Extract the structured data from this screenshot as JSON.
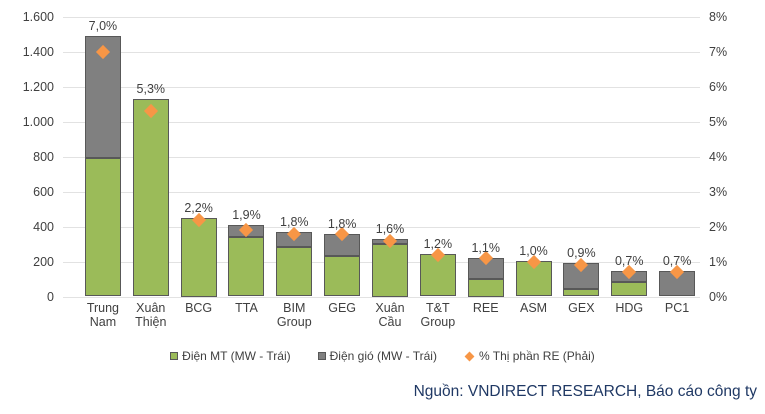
{
  "chart_data": {
    "type": "bar",
    "subtype": "stacked-bars-with-scatter-overlay",
    "categories": [
      "Trung Nam",
      "Xuân Thiện",
      "BCG",
      "TTA",
      "BIM Group",
      "GEG",
      "Xuân Cầu",
      "T&T Group",
      "REE",
      "ASM",
      "GEX",
      "HDG",
      "PC1"
    ],
    "series": [
      {
        "name": "Điện MT (MW - Trái)",
        "type": "bar-stack",
        "axis": "left",
        "color": "#9bbb59",
        "values": [
          790,
          1130,
          450,
          340,
          285,
          230,
          300,
          245,
          100,
          205,
          45,
          85,
          0
        ]
      },
      {
        "name": "Điện gió (MW - Trái)",
        "type": "bar-stack",
        "axis": "left",
        "color": "#808080",
        "values": [
          700,
          0,
          0,
          70,
          85,
          130,
          30,
          0,
          120,
          0,
          145,
          60,
          145
        ]
      },
      {
        "name": "% Thị phần RE (Phải)",
        "type": "scatter-diamond",
        "axis": "right",
        "color": "#f79646",
        "values": [
          7.0,
          5.3,
          2.2,
          1.9,
          1.8,
          1.8,
          1.6,
          1.2,
          1.1,
          1.0,
          0.9,
          0.7,
          0.7
        ]
      }
    ],
    "point_labels": [
      "7,0%",
      "5,3%",
      "2,2%",
      "1,9%",
      "1,8%",
      "1,8%",
      "1,6%",
      "1,2%",
      "1,1%",
      "1,0%",
      "0,9%",
      "0,7%",
      "0,7%"
    ],
    "left_axis": {
      "min": 0,
      "max": 1600,
      "step": 200,
      "ticks": [
        "1.600",
        "1.400",
        "1.200",
        "1.000",
        "800",
        "600",
        "400",
        "200",
        "0"
      ]
    },
    "right_axis": {
      "min": 0,
      "max": 8,
      "step": 1,
      "ticks": [
        "8%",
        "7%",
        "6%",
        "5%",
        "4%",
        "3%",
        "2%",
        "1%",
        "0%"
      ]
    },
    "grid": true,
    "legend_position": "bottom",
    "source": "Nguồn: VNDIRECT RESEARCH, Báo cáo công ty",
    "colors": {
      "solar": "#9bbb59",
      "wind": "#808080",
      "marker": "#f79646",
      "bar_outline": "#585858",
      "gridline": "#e2e2e2",
      "axis_text": "#404040",
      "source_text": "#1f3864"
    }
  }
}
